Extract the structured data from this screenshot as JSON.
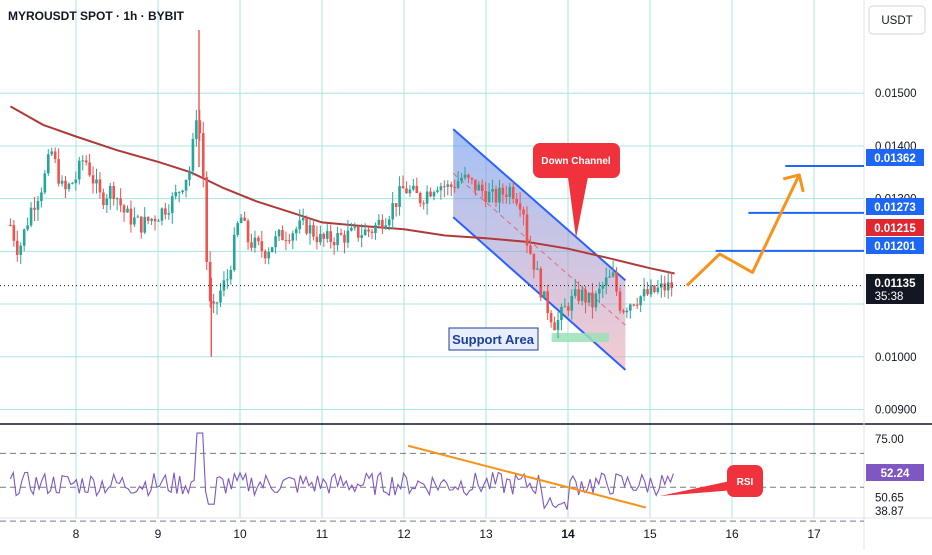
{
  "header": {
    "title": "MYROUSDT SPOT · 1h · BYBIT",
    "currency": "USDT"
  },
  "colors": {
    "background": "#ffffff",
    "grid": "#a8e6e0",
    "candle_up": "#26a69a",
    "candle_down": "#ef5350",
    "moving_average": "#b03a3a",
    "channel": "#2962ff",
    "channel_fill_top": "#5b8def",
    "channel_fill_bottom": "#f0a8b0",
    "projection": "#f7931a",
    "target_line": "#1e66f5",
    "price_tag_blue": "#1e66f5",
    "price_tag_red": "#e0272f",
    "price_tag_dark": "#131722",
    "rsi_line": "#7e57c2",
    "rsi_trend": "#f7931a",
    "bubble_red": "#f0323c",
    "support_fill": "#9be0b8"
  },
  "annotations": {
    "down_channel": "Down Channel",
    "support_area": "Support Area",
    "rsi_label": "RSI"
  },
  "price_tags": {
    "t1": "0.01362",
    "t2": "0.01273",
    "t3": "0.01215",
    "t4": "0.01201",
    "current": "0.01135",
    "countdown": "35:38"
  },
  "rsi_tags": {
    "current": "52.24"
  },
  "chart_data": {
    "type": "candlestick",
    "title": "MYROUSDT SPOT · 1h · BYBIT",
    "ylabel": "USDT",
    "ylim": [
      0.0088,
      0.0162
    ],
    "y_ticks": [
      "0.01500",
      "0.01400",
      "0.01300",
      "0.01000",
      "0.00900"
    ],
    "x_ticks": [
      "8",
      "9",
      "10",
      "11",
      "12",
      "13",
      "14",
      "15",
      "16",
      "17"
    ],
    "x_tick_values": [
      8,
      9,
      10,
      11,
      12,
      13,
      14,
      15,
      16,
      17
    ],
    "moving_average": {
      "x": [
        7.2,
        7.6,
        8.0,
        8.5,
        9.0,
        9.4,
        9.8,
        10.2,
        10.6,
        11.0,
        11.5,
        12.0,
        12.5,
        13.0,
        13.5,
        14.0,
        14.5,
        15.0,
        15.3
      ],
      "y": [
        0.01475,
        0.0144,
        0.01418,
        0.01392,
        0.0137,
        0.0135,
        0.0132,
        0.01295,
        0.01275,
        0.01255,
        0.01248,
        0.01242,
        0.0123,
        0.01225,
        0.01218,
        0.01205,
        0.01187,
        0.01168,
        0.01158
      ]
    },
    "down_channel": {
      "upper": [
        [
          12.6,
          0.01432
        ],
        [
          14.7,
          0.01145
        ]
      ],
      "lower": [
        [
          12.6,
          0.01265
        ],
        [
          14.7,
          0.00975
        ]
      ],
      "mid": [
        [
          12.6,
          0.01348
        ],
        [
          14.7,
          0.0106
        ]
      ]
    },
    "support_area": {
      "x": [
        13.8,
        14.5
      ],
      "y": [
        0.01028,
        0.01045
      ]
    },
    "target_levels": [
      {
        "value": 0.01201,
        "x_start": 15.8
      },
      {
        "value": 0.01273,
        "x_start": 16.2
      },
      {
        "value": 0.01362,
        "x_start": 16.65
      }
    ],
    "projection_path": [
      [
        15.45,
        0.01135
      ],
      [
        15.85,
        0.01195
      ],
      [
        16.25,
        0.0116
      ],
      [
        16.82,
        0.01345
      ]
    ],
    "rsi": {
      "ylim": [
        33,
        85
      ],
      "levels": [
        70,
        50,
        30
      ],
      "y_ticks": [
        "75.00",
        "52.24",
        "50.65",
        "38.87"
      ],
      "trendline": [
        [
          12.05,
          74.5
        ],
        [
          14.95,
          38.0
        ]
      ],
      "current": 52.24
    }
  }
}
